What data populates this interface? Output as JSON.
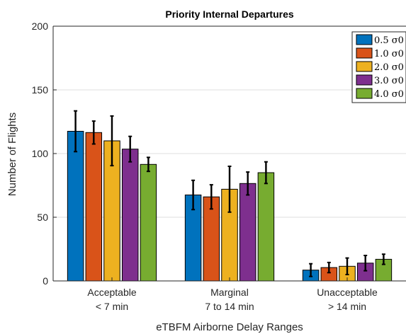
{
  "chart_data": {
    "type": "bar",
    "title": "Priority Internal Departures",
    "xlabel": "eTBFM Airborne Delay Ranges",
    "ylabel": "Number of Flights",
    "ylim": [
      0,
      200
    ],
    "yticks": [
      0,
      50,
      100,
      150,
      200
    ],
    "grid": true,
    "legend_position": "top-right",
    "categories": [
      {
        "line1": "Acceptable",
        "line2": "< 7 min"
      },
      {
        "line1": "Marginal",
        "line2": "7 to 14 min"
      },
      {
        "line1": "Unacceptable",
        "line2": "> 14 min"
      }
    ],
    "series": [
      {
        "name": "0.5 σ0",
        "color": "#0072BD",
        "values": [
          117.5,
          67.5,
          8.5
        ],
        "errors": [
          16,
          11.5,
          5
        ]
      },
      {
        "name": "1.0 σ0",
        "color": "#D95319",
        "values": [
          116.5,
          66,
          10.5
        ],
        "errors": [
          9,
          9.5,
          4
        ]
      },
      {
        "name": "2.0 σ0",
        "color": "#EDB120",
        "values": [
          110,
          72,
          11.5
        ],
        "errors": [
          19.5,
          18,
          6.5
        ]
      },
      {
        "name": "3.0 σ0",
        "color": "#7E2F8E",
        "values": [
          103.5,
          76.5,
          14
        ],
        "errors": [
          10,
          9,
          6
        ]
      },
      {
        "name": "4.0 σ0",
        "color": "#77AC30",
        "values": [
          91.5,
          85,
          17
        ],
        "errors": [
          5.5,
          8.5,
          4
        ]
      }
    ]
  }
}
